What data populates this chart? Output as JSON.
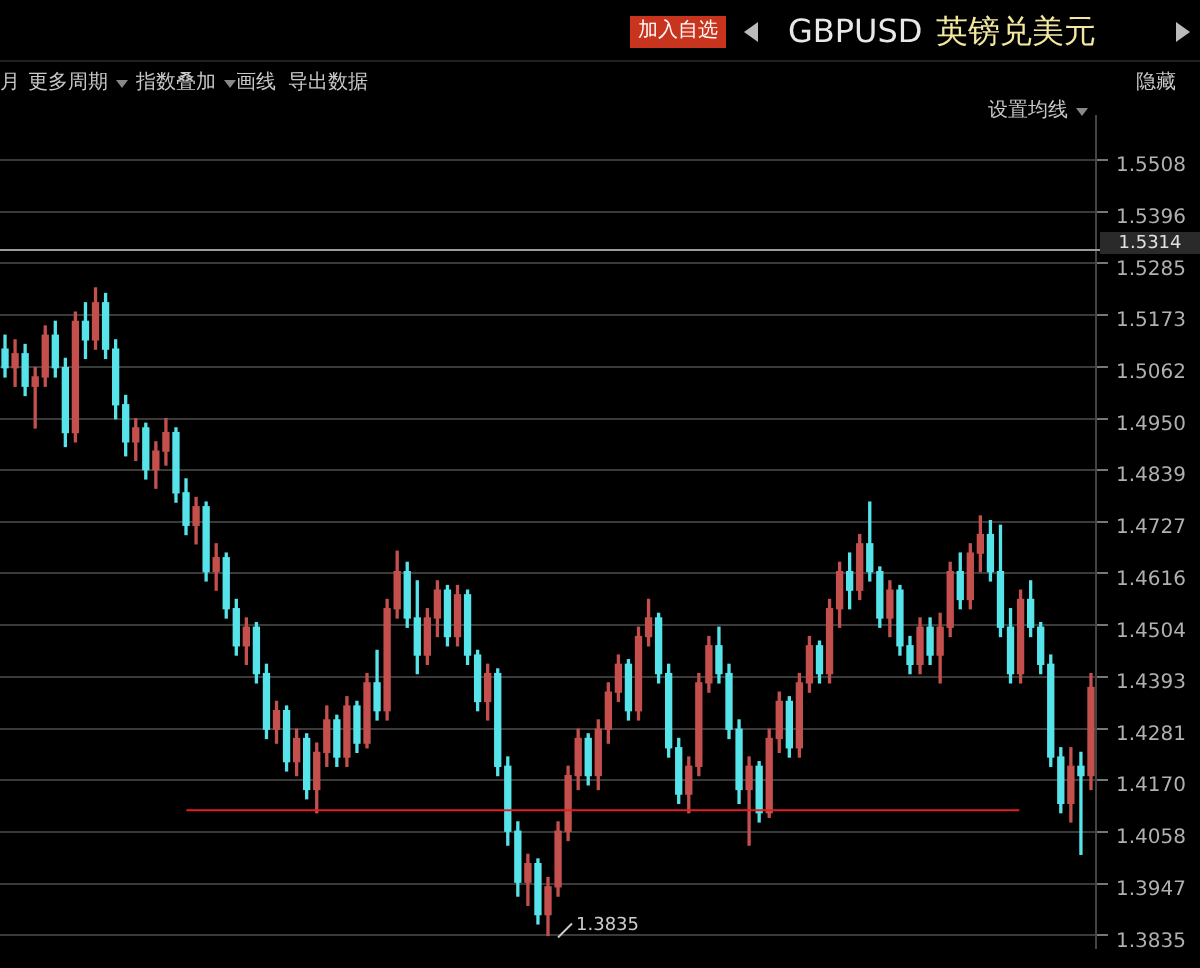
{
  "chart_data": {
    "type": "candlestick",
    "title": "GBPUSD",
    "subtitle": "英镑兑美元",
    "annotations": [
      "加入自选",
      "月",
      "更多周期",
      "指数叠加",
      "画线",
      "导出数据",
      "隐藏",
      "设置均线",
      "1.3835"
    ],
    "categories": [
      null,
      null,
      null,
      null,
      null,
      null,
      null,
      null,
      null,
      null,
      null,
      null,
      null,
      null,
      null,
      null,
      null,
      null,
      null,
      null,
      null,
      null,
      null,
      null,
      null,
      null,
      null,
      null,
      null,
      null,
      null,
      null,
      null,
      null,
      null,
      null,
      null,
      null,
      null,
      null,
      null,
      null,
      null,
      null,
      null,
      null,
      null,
      null,
      null,
      null,
      null,
      null,
      null,
      null,
      null,
      null,
      null,
      null,
      null,
      null,
      null,
      null,
      null,
      null,
      null,
      null,
      null,
      null,
      null,
      null,
      null,
      null,
      null,
      null,
      null,
      null,
      null,
      null,
      null,
      null,
      null,
      null,
      null,
      null,
      null,
      null,
      null,
      null,
      null,
      null,
      null,
      null,
      null,
      null,
      null,
      null,
      null,
      null,
      null,
      null,
      null,
      null,
      null,
      null,
      null,
      null,
      null,
      null,
      null
    ],
    "ohlc": [
      [
        1.51,
        1.513,
        1.504,
        1.506
      ],
      [
        1.506,
        1.512,
        1.502,
        1.509
      ],
      [
        1.509,
        1.511,
        1.5,
        1.502
      ],
      [
        1.502,
        1.506,
        1.493,
        1.504
      ],
      [
        1.504,
        1.515,
        1.502,
        1.513
      ],
      [
        1.513,
        1.516,
        1.504,
        1.506
      ],
      [
        1.506,
        1.508,
        1.489,
        1.492
      ],
      [
        1.492,
        1.518,
        1.49,
        1.516
      ],
      [
        1.516,
        1.52,
        1.508,
        1.512
      ],
      [
        1.512,
        1.5232,
        1.51,
        1.52
      ],
      [
        1.52,
        1.522,
        1.508,
        1.51
      ],
      [
        1.51,
        1.512,
        1.495,
        1.498
      ],
      [
        1.498,
        1.5,
        1.487,
        1.49
      ],
      [
        1.49,
        1.495,
        1.486,
        1.493
      ],
      [
        1.493,
        1.494,
        1.482,
        1.484
      ],
      [
        1.484,
        1.49,
        1.48,
        1.488
      ],
      [
        1.488,
        1.495,
        1.485,
        1.492
      ],
      [
        1.492,
        1.493,
        1.477,
        1.479
      ],
      [
        1.479,
        1.482,
        1.47,
        1.472
      ],
      [
        1.472,
        1.478,
        1.468,
        1.476
      ],
      [
        1.476,
        1.477,
        1.46,
        1.462
      ],
      [
        1.462,
        1.468,
        1.458,
        1.465
      ],
      [
        1.465,
        1.466,
        1.452,
        1.454
      ],
      [
        1.454,
        1.456,
        1.444,
        1.446
      ],
      [
        1.446,
        1.452,
        1.442,
        1.45
      ],
      [
        1.45,
        1.451,
        1.438,
        1.44
      ],
      [
        1.44,
        1.442,
        1.426,
        1.428
      ],
      [
        1.428,
        1.434,
        1.425,
        1.432
      ],
      [
        1.432,
        1.433,
        1.419,
        1.421
      ],
      [
        1.421,
        1.428,
        1.418,
        1.426
      ],
      [
        1.426,
        1.427,
        1.413,
        1.415
      ],
      [
        1.415,
        1.425,
        1.41,
        1.423
      ],
      [
        1.423,
        1.433,
        1.42,
        1.43
      ],
      [
        1.43,
        1.431,
        1.42,
        1.422
      ],
      [
        1.422,
        1.435,
        1.42,
        1.433
      ],
      [
        1.433,
        1.434,
        1.423,
        1.425
      ],
      [
        1.425,
        1.44,
        1.424,
        1.438
      ],
      [
        1.438,
        1.445,
        1.43,
        1.432
      ],
      [
        1.432,
        1.456,
        1.43,
        1.454
      ],
      [
        1.454,
        1.4664,
        1.452,
        1.462
      ],
      [
        1.462,
        1.464,
        1.45,
        1.452
      ],
      [
        1.452,
        1.46,
        1.44,
        1.444
      ],
      [
        1.444,
        1.454,
        1.442,
        1.452
      ],
      [
        1.452,
        1.46,
        1.448,
        1.458
      ],
      [
        1.458,
        1.459,
        1.446,
        1.448
      ],
      [
        1.448,
        1.459,
        1.446,
        1.457
      ],
      [
        1.457,
        1.458,
        1.442,
        1.444
      ],
      [
        1.444,
        1.445,
        1.432,
        1.434
      ],
      [
        1.434,
        1.442,
        1.43,
        1.44
      ],
      [
        1.44,
        1.441,
        1.418,
        1.42
      ],
      [
        1.42,
        1.422,
        1.403,
        1.406
      ],
      [
        1.406,
        1.408,
        1.392,
        1.395
      ],
      [
        1.395,
        1.401,
        1.39,
        1.399
      ],
      [
        1.399,
        1.4,
        1.386,
        1.388
      ],
      [
        1.388,
        1.396,
        1.3835,
        1.394
      ],
      [
        1.394,
        1.408,
        1.392,
        1.406
      ],
      [
        1.406,
        1.42,
        1.404,
        1.418
      ],
      [
        1.418,
        1.428,
        1.415,
        1.426
      ],
      [
        1.426,
        1.427,
        1.416,
        1.418
      ],
      [
        1.418,
        1.43,
        1.415,
        1.428
      ],
      [
        1.428,
        1.438,
        1.425,
        1.436
      ],
      [
        1.436,
        1.444,
        1.434,
        1.442
      ],
      [
        1.442,
        1.443,
        1.43,
        1.432
      ],
      [
        1.432,
        1.45,
        1.43,
        1.448
      ],
      [
        1.448,
        1.456,
        1.446,
        1.452
      ],
      [
        1.452,
        1.453,
        1.438,
        1.44
      ],
      [
        1.44,
        1.442,
        1.422,
        1.424
      ],
      [
        1.424,
        1.426,
        1.412,
        1.414
      ],
      [
        1.414,
        1.422,
        1.41,
        1.42
      ],
      [
        1.42,
        1.44,
        1.418,
        1.438
      ],
      [
        1.438,
        1.448,
        1.436,
        1.446
      ],
      [
        1.446,
        1.45,
        1.438,
        1.44
      ],
      [
        1.44,
        1.442,
        1.426,
        1.428
      ],
      [
        1.428,
        1.43,
        1.412,
        1.415
      ],
      [
        1.415,
        1.422,
        1.403,
        1.42
      ],
      [
        1.42,
        1.421,
        1.408,
        1.41
      ],
      [
        1.41,
        1.428,
        1.409,
        1.426
      ],
      [
        1.426,
        1.436,
        1.423,
        1.434
      ],
      [
        1.434,
        1.435,
        1.422,
        1.424
      ],
      [
        1.424,
        1.44,
        1.422,
        1.438
      ],
      [
        1.438,
        1.448,
        1.436,
        1.446
      ],
      [
        1.446,
        1.447,
        1.438,
        1.44
      ],
      [
        1.44,
        1.456,
        1.438,
        1.454
      ],
      [
        1.454,
        1.464,
        1.45,
        1.462
      ],
      [
        1.462,
        1.466,
        1.454,
        1.458
      ],
      [
        1.458,
        1.47,
        1.456,
        1.468
      ],
      [
        1.468,
        1.477,
        1.46,
        1.462
      ],
      [
        1.462,
        1.463,
        1.45,
        1.452
      ],
      [
        1.452,
        1.46,
        1.448,
        1.458
      ],
      [
        1.458,
        1.459,
        1.444,
        1.446
      ],
      [
        1.446,
        1.448,
        1.44,
        1.442
      ],
      [
        1.442,
        1.452,
        1.44,
        1.45
      ],
      [
        1.45,
        1.452,
        1.442,
        1.444
      ],
      [
        1.444,
        1.453,
        1.438,
        1.45
      ],
      [
        1.45,
        1.464,
        1.448,
        1.462
      ],
      [
        1.462,
        1.466,
        1.454,
        1.456
      ],
      [
        1.456,
        1.468,
        1.454,
        1.466
      ],
      [
        1.466,
        1.474,
        1.462,
        1.47
      ],
      [
        1.47,
        1.473,
        1.46,
        1.462
      ],
      [
        1.462,
        1.472,
        1.448,
        1.45
      ],
      [
        1.45,
        1.454,
        1.438,
        1.44
      ],
      [
        1.44,
        1.458,
        1.438,
        1.456
      ],
      [
        1.456,
        1.46,
        1.448,
        1.45
      ],
      [
        1.45,
        1.451,
        1.44,
        1.442
      ],
      [
        1.442,
        1.444,
        1.42,
        1.422
      ],
      [
        1.422,
        1.424,
        1.41,
        1.412
      ],
      [
        1.412,
        1.424,
        1.408,
        1.42
      ],
      [
        1.42,
        1.423,
        1.401,
        1.418
      ],
      [
        1.418,
        1.44,
        1.415,
        1.437
      ]
    ],
    "colors": [
      "#56e3ea",
      "#c4504e",
      "#56e3ea",
      "#c4504e",
      "#c4504e",
      "#56e3ea",
      "#56e3ea",
      "#c4504e",
      "#56e3ea",
      "#c4504e",
      "#56e3ea",
      "#56e3ea",
      "#56e3ea",
      "#c4504e",
      "#56e3ea",
      "#c4504e",
      "#c4504e",
      "#56e3ea",
      "#56e3ea",
      "#c4504e",
      "#56e3ea",
      "#c4504e",
      "#56e3ea",
      "#56e3ea",
      "#c4504e",
      "#56e3ea",
      "#56e3ea",
      "#c4504e",
      "#56e3ea",
      "#c4504e",
      "#56e3ea",
      "#c4504e",
      "#c4504e",
      "#56e3ea",
      "#c4504e",
      "#56e3ea",
      "#c4504e",
      "#56e3ea",
      "#c4504e",
      "#c4504e",
      "#56e3ea",
      "#56e3ea",
      "#c4504e",
      "#c4504e",
      "#56e3ea",
      "#c4504e",
      "#56e3ea",
      "#56e3ea",
      "#c4504e",
      "#56e3ea",
      "#56e3ea",
      "#56e3ea",
      "#c4504e",
      "#56e3ea",
      "#c4504e",
      "#c4504e",
      "#c4504e",
      "#c4504e",
      "#56e3ea",
      "#c4504e",
      "#c4504e",
      "#c4504e",
      "#56e3ea",
      "#c4504e",
      "#c4504e",
      "#56e3ea",
      "#56e3ea",
      "#56e3ea",
      "#c4504e",
      "#c4504e",
      "#c4504e",
      "#56e3ea",
      "#56e3ea",
      "#56e3ea",
      "#c4504e",
      "#56e3ea",
      "#c4504e",
      "#c4504e",
      "#56e3ea",
      "#c4504e",
      "#c4504e",
      "#56e3ea",
      "#c4504e",
      "#c4504e",
      "#56e3ea",
      "#c4504e",
      "#56e3ea",
      "#56e3ea",
      "#c4504e",
      "#56e3ea",
      "#56e3ea",
      "#c4504e",
      "#56e3ea",
      "#c4504e",
      "#c4504e",
      "#56e3ea",
      "#c4504e",
      "#c4504e",
      "#56e3ea",
      "#56e3ea",
      "#56e3ea",
      "#c4504e",
      "#56e3ea",
      "#56e3ea",
      "#56e3ea",
      "#56e3ea",
      "#c4504e",
      "#56e3ea",
      "#c4504e"
    ],
    "ylim": [
      1.3808,
      1.5603
    ],
    "yticks": [
      {
        "value": 1.5508,
        "label": "1.5508"
      },
      {
        "value": 1.5396,
        "label": "1.5396"
      },
      {
        "value": 1.5285,
        "label": "1.5285"
      },
      {
        "value": 1.5173,
        "label": "1.5173"
      },
      {
        "value": 1.5062,
        "label": "1.5062"
      },
      {
        "value": 1.495,
        "label": "1.4950"
      },
      {
        "value": 1.4839,
        "label": "1.4839"
      },
      {
        "value": 1.4727,
        "label": "1.4727"
      },
      {
        "value": 1.4616,
        "label": "1.4616"
      },
      {
        "value": 1.4504,
        "label": "1.4504"
      },
      {
        "value": 1.4393,
        "label": "1.4393"
      },
      {
        "value": 1.4281,
        "label": "1.4281"
      },
      {
        "value": 1.417,
        "label": "1.4170"
      },
      {
        "value": 1.4058,
        "label": "1.4058"
      },
      {
        "value": 1.3947,
        "label": "1.3947"
      },
      {
        "value": 1.3835,
        "label": "1.3835"
      }
    ],
    "grid": "y",
    "tick_labels": "y",
    "ref_lines": [
      {
        "axis": "y",
        "value": 1.5314,
        "label": "1.5314",
        "color": "#9a9a9a"
      },
      {
        "axis": "y",
        "value": 1.4105,
        "color": "#e02020"
      }
    ]
  }
}
